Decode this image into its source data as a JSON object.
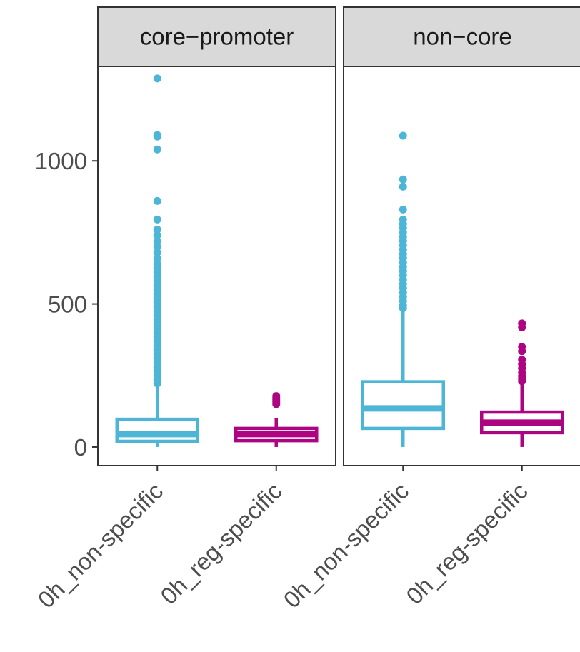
{
  "colors": {
    "0h_non-specific": "#4db6d6",
    "0h_reg-specific": "#ad0481",
    "strip_fill": "#d9d9d9",
    "axis": "#333333"
  },
  "chart_data": {
    "type": "boxplot",
    "title": "",
    "xlabel": "",
    "ylabel": "",
    "ylim": [
      -65,
      1330
    ],
    "yticks": [
      0,
      500,
      1000
    ],
    "categories": [
      "0h_non-specific",
      "0h_reg-specific"
    ],
    "grid": false,
    "legend": "none",
    "panels": [
      {
        "name": "core−promoter",
        "boxes": [
          {
            "category": "0h_non-specific",
            "min": 0,
            "q1": 20,
            "median": 45,
            "q3": 97,
            "upper_whisker": 215,
            "outliers": [
              1288,
              1090,
              1085,
              1040,
              860,
              795,
              760,
              740,
              720,
              700,
              680,
              660,
              640,
              625,
              610,
              595,
              580,
              565,
              550,
              535,
              520,
              505,
              490,
              475,
              460,
              445,
              430,
              415,
              400,
              385,
              370,
              355,
              340,
              325,
              310,
              295,
              280,
              265,
              250,
              235,
              222
            ]
          },
          {
            "category": "0h_reg-specific",
            "min": 0,
            "q1": 22,
            "median": 45,
            "q3": 65,
            "upper_whisker": 100,
            "outliers": [
              178,
              172,
              165,
              158,
              150
            ]
          }
        ]
      },
      {
        "name": "non−core",
        "boxes": [
          {
            "category": "0h_non-specific",
            "min": 0,
            "q1": 65,
            "median": 135,
            "q3": 228,
            "upper_whisker": 475,
            "outliers": [
              1088,
              935,
              910,
              830,
              795,
              780,
              765,
              750,
              735,
              720,
              705,
              690,
              675,
              660,
              645,
              630,
              615,
              600,
              585,
              570,
              555,
              540,
              525,
              510,
              495,
              485
            ]
          },
          {
            "category": "0h_reg-specific",
            "min": 0,
            "q1": 50,
            "median": 85,
            "q3": 122,
            "upper_whisker": 220,
            "outliers": [
              432,
              418,
              350,
              335,
              305,
              290,
              275,
              260,
              248,
              238,
              230
            ]
          }
        ]
      }
    ]
  }
}
